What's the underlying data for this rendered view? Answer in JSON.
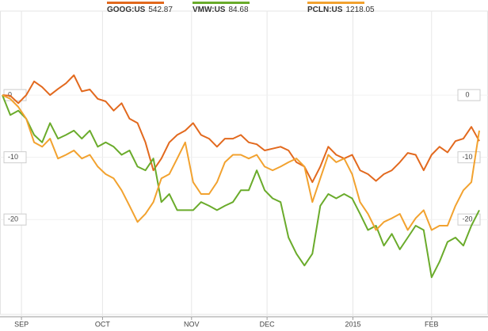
{
  "chart_data": {
    "type": "line",
    "xlim": [
      0,
      60
    ],
    "xticks": [
      {
        "value": 2.4,
        "label": "SEP"
      },
      {
        "value": 12.6,
        "label": "OCT"
      },
      {
        "value": 23.8,
        "label": "NOV"
      },
      {
        "value": 33.3,
        "label": "DEC"
      },
      {
        "value": 44.1,
        "label": "2015"
      },
      {
        "value": 54.0,
        "label": "FEB"
      }
    ],
    "ylim": [
      -35,
      13
    ],
    "yticks": [
      0,
      -10,
      -20
    ],
    "grid": true,
    "series": [
      {
        "name": "GOOG:US",
        "last_price": 542.87,
        "color": "#e2691e",
        "values": [
          0,
          -0.1,
          -1.3,
          0,
          2.2,
          1.3,
          0,
          1,
          1.9,
          3.2,
          0.6,
          0.9,
          -0.6,
          -1,
          -2.5,
          -1.3,
          -3.8,
          -4.5,
          -7.6,
          -12.1,
          -10.2,
          -7.6,
          -6.4,
          -5.7,
          -4.5,
          -6.4,
          -7,
          -8.3,
          -7,
          -7,
          -6.4,
          -7.6,
          -7.9,
          -8.9,
          -8.6,
          -8.3,
          -8.9,
          -10.8,
          -11.5,
          -14,
          -11.5,
          -8.3,
          -9.6,
          -10.2,
          -9.6,
          -12.1,
          -12.7,
          -13.8,
          -12.7,
          -12.1,
          -10.8,
          -9.3,
          -9.6,
          -12.1,
          -9.6,
          -8.3,
          -9.2,
          -7.4,
          -7,
          -5.1,
          -7.4
        ]
      },
      {
        "name": "VMW:US",
        "last_price": 84.68,
        "color": "#6aab2b",
        "values": [
          0,
          -3.2,
          -2.5,
          -3.8,
          -6.4,
          -7.6,
          -4.5,
          -7,
          -6.4,
          -5.7,
          -7,
          -5.7,
          -8.3,
          -7.6,
          -8.3,
          -9.6,
          -8.9,
          -11.5,
          -12.1,
          -10.2,
          -17.2,
          -15.9,
          -18.5,
          -18.5,
          -18.5,
          -17.2,
          -17.8,
          -18.5,
          -17.8,
          -17.2,
          -15.3,
          -15.3,
          -12.1,
          -15.3,
          -16.6,
          -17.2,
          -22.9,
          -25.5,
          -27.4,
          -25.5,
          -17.8,
          -15.9,
          -16.6,
          -15.9,
          -16.6,
          -19.1,
          -21.7,
          -21,
          -24.2,
          -22.3,
          -24.8,
          -22.9,
          -21,
          -21.7,
          -29.3,
          -26.8,
          -23.6,
          -22.9,
          -24.2,
          -21,
          -18.5
        ]
      },
      {
        "name": "PCLN:US",
        "last_price": 1218.05,
        "color": "#f2a22f",
        "values": [
          0,
          -0.6,
          -1.9,
          -3.8,
          -7.6,
          -8.3,
          -7,
          -10.2,
          -9.6,
          -8.9,
          -10.2,
          -9.6,
          -11.5,
          -12.7,
          -13.4,
          -15.3,
          -17.8,
          -20.4,
          -19.1,
          -17.2,
          -13.4,
          -12.7,
          -10.2,
          -7.6,
          -14,
          -15.9,
          -15.9,
          -14,
          -10.8,
          -9.6,
          -9.6,
          -10.2,
          -9.6,
          -11.5,
          -12.1,
          -11.5,
          -10.8,
          -10.2,
          -11.5,
          -17.2,
          -13.4,
          -9.6,
          -10.8,
          -10.2,
          -12.7,
          -17.2,
          -19.1,
          -21.7,
          -20.4,
          -19.8,
          -19.1,
          -21.7,
          -19.8,
          -18.5,
          -21.7,
          -21,
          -21,
          -17.8,
          -15.3,
          -14,
          -5.7
        ]
      }
    ]
  }
}
